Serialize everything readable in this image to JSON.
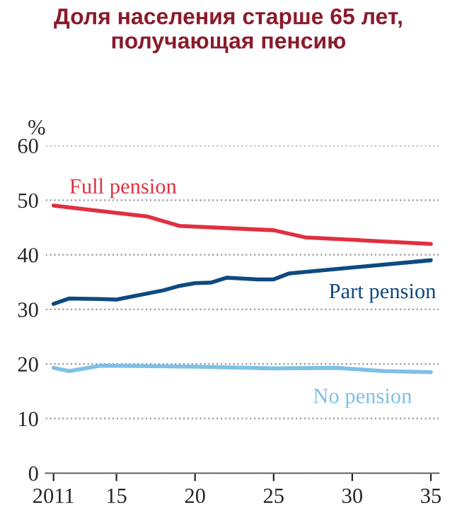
{
  "chart_data": {
    "type": "line",
    "title": "Доля населения старше 65 лет,\nполучающая пенсию",
    "ylabel": "%",
    "xlim": [
      2010.5,
      2035.5
    ],
    "xticks": [
      2011,
      {
        "value": 2015,
        "label": "15"
      },
      {
        "value": 2020,
        "label": "20"
      },
      {
        "value": 2025,
        "label": "25"
      },
      {
        "value": 2030,
        "label": "30"
      },
      {
        "value": 2035,
        "label": "35"
      }
    ],
    "ylim": [
      0,
      60
    ],
    "yticks": [
      0,
      10,
      20,
      30,
      40,
      50,
      60
    ],
    "grid": "y",
    "line_style": "solid",
    "marker": "none",
    "legend": false,
    "series": [
      {
        "name": "Full pension",
        "color": "#e0303f",
        "x": [
          2011,
          2017,
          2019,
          2025,
          2027,
          2035
        ],
        "values": [
          49,
          47,
          45.3,
          44.5,
          43.2,
          42
        ]
      },
      {
        "name": "Part pension",
        "color": "#0e4a80",
        "x": [
          2011,
          2012,
          2014,
          2015,
          2018,
          2019,
          2020,
          2021,
          2022,
          2024,
          2025,
          2026,
          2035
        ],
        "values": [
          31,
          32,
          31.9,
          31.8,
          33.5,
          34.3,
          34.8,
          34.9,
          35.8,
          35.5,
          35.5,
          36.6,
          39
        ]
      },
      {
        "name": "No pension",
        "color": "#7ec0e6",
        "x": [
          2011,
          2012,
          2014,
          2020,
          2025,
          2029,
          2032,
          2035
        ],
        "values": [
          19.3,
          18.7,
          19.7,
          19.5,
          19.2,
          19.3,
          18.7,
          18.5
        ]
      }
    ]
  }
}
